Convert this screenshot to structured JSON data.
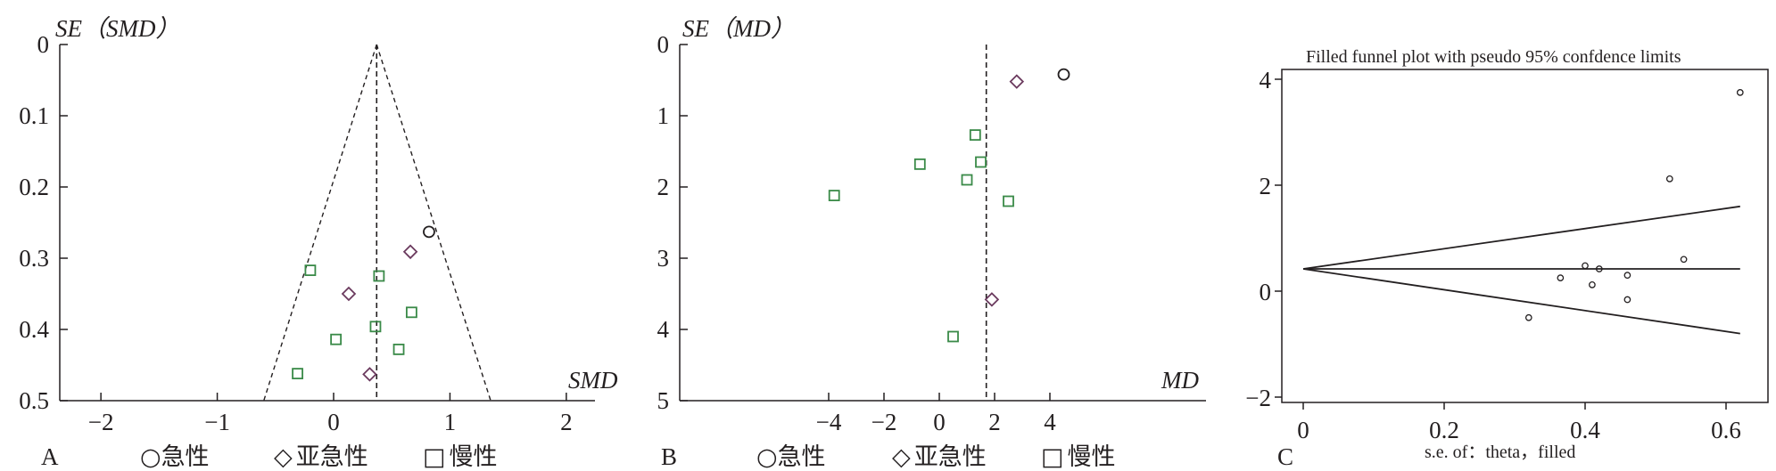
{
  "chart_data": [
    {
      "panel": "A",
      "type": "scatter",
      "title": "",
      "xlabel": "SMD",
      "ylabel": "SE（SMD）",
      "xlim": [
        -2.3,
        2.3
      ],
      "ylim": [
        0,
        0.5
      ],
      "y_inverted": true,
      "xticks": [
        "−2",
        "−1",
        "0",
        "1",
        "2"
      ],
      "yticks": [
        "0",
        "0.1",
        "0.2",
        "0.3",
        "0.4",
        "0.5"
      ],
      "pooled_effect": 0.37,
      "funnel": {
        "apex": [
          0.37,
          0
        ],
        "base_left": [
          -0.6,
          0.5
        ],
        "base_right": [
          1.35,
          0.5
        ]
      },
      "legend": [
        {
          "symbol": "○",
          "label": "急性"
        },
        {
          "symbol": "◇",
          "label": "亚急性"
        },
        {
          "symbol": "□",
          "label": "慢性"
        }
      ],
      "series": [
        {
          "name": "急性",
          "marker": "circle",
          "color": "#231f20",
          "points": [
            [
              0.82,
              0.263
            ]
          ]
        },
        {
          "name": "亚急性",
          "marker": "diamond",
          "color": "#6b3a5e",
          "points": [
            [
              0.66,
              0.291
            ],
            [
              0.13,
              0.35
            ],
            [
              0.31,
              0.463
            ]
          ]
        },
        {
          "name": "慢性",
          "marker": "square",
          "color": "#3a8a48",
          "points": [
            [
              -0.2,
              0.317
            ],
            [
              0.39,
              0.325
            ],
            [
              0.67,
              0.376
            ],
            [
              0.36,
              0.396
            ],
            [
              0.02,
              0.414
            ],
            [
              0.56,
              0.428
            ],
            [
              -0.31,
              0.462
            ]
          ]
        }
      ]
    },
    {
      "panel": "B",
      "type": "scatter",
      "title": "",
      "xlabel": "MD",
      "ylabel": "SE（MD）",
      "xlim": [
        -7.5,
        11
      ],
      "ylim": [
        0,
        5
      ],
      "y_inverted": true,
      "xticks": [
        "−4",
        "−2",
        "0",
        "2",
        "4"
      ],
      "yticks": [
        "0",
        "1",
        "2",
        "3",
        "4",
        "5"
      ],
      "pooled_effect": 1.7,
      "legend": [
        {
          "symbol": "○",
          "label": "急性"
        },
        {
          "symbol": "◇",
          "label": "亚急性"
        },
        {
          "symbol": "□",
          "label": "慢性"
        }
      ],
      "series": [
        {
          "name": "急性",
          "marker": "circle",
          "color": "#231f20",
          "points": [
            [
              4.5,
              0.42
            ]
          ]
        },
        {
          "name": "亚急性",
          "marker": "diamond",
          "color": "#6b3a5e",
          "points": [
            [
              2.8,
              0.52
            ],
            [
              1.9,
              3.58
            ]
          ]
        },
        {
          "name": "慢性",
          "marker": "square",
          "color": "#3a8a48",
          "points": [
            [
              1.3,
              1.27
            ],
            [
              1.5,
              1.65
            ],
            [
              -0.7,
              1.68
            ],
            [
              1.0,
              1.9
            ],
            [
              -3.8,
              2.12
            ],
            [
              2.5,
              2.2
            ],
            [
              0.5,
              4.1
            ]
          ]
        }
      ]
    },
    {
      "panel": "C",
      "type": "scatter",
      "title": "Filled funnel plot with pseudo 95% confdence limits",
      "xlabel": "s.e. of：theta，filled",
      "ylabel": "",
      "xlim": [
        -0.02,
        0.64
      ],
      "ylim": [
        -2.2,
        4.3
      ],
      "xticks": [
        "0",
        "0.2",
        "0.4",
        "0.6"
      ],
      "yticks": [
        "−2",
        "0",
        "2",
        "4"
      ],
      "pooled_effect": 0.42,
      "limits": {
        "upper_at_0.62": 1.6,
        "lower_at_0.62": -0.8
      },
      "points": [
        [
          0.62,
          3.75
        ],
        [
          0.52,
          2.12
        ],
        [
          0.54,
          0.6
        ],
        [
          0.4,
          0.48
        ],
        [
          0.42,
          0.42
        ],
        [
          0.46,
          0.3
        ],
        [
          0.365,
          0.25
        ],
        [
          0.41,
          0.12
        ],
        [
          0.46,
          -0.16
        ],
        [
          0.32,
          -0.5
        ]
      ]
    }
  ]
}
